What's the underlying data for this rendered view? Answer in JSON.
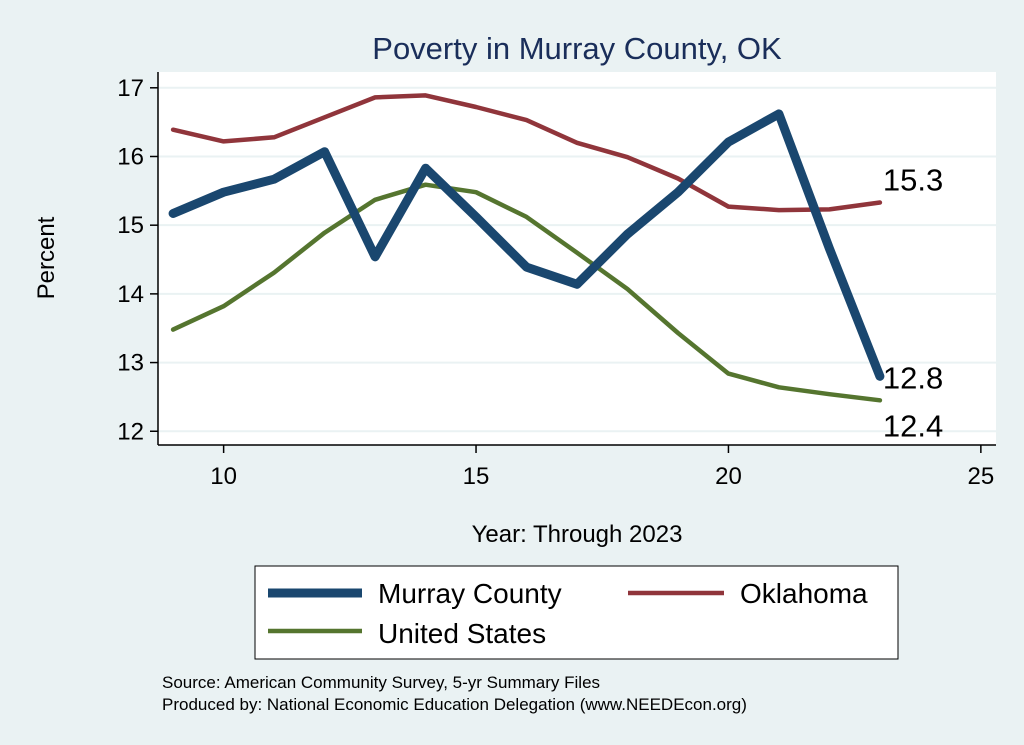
{
  "chart_data": {
    "type": "line",
    "title": "Poverty in Murray County, OK",
    "xlabel": "Year: Through 2023",
    "ylabel": "Percent",
    "xlim": [
      8.7,
      25.3
    ],
    "ylim": [
      11.8,
      17.23
    ],
    "xticks": [
      10,
      15,
      20,
      25
    ],
    "yticks": [
      12,
      13,
      14,
      15,
      16,
      17
    ],
    "grid": true,
    "legend_position": "bottom",
    "x": [
      9,
      10,
      11,
      12,
      13,
      14,
      15,
      16,
      17,
      18,
      19,
      20,
      21,
      22,
      23
    ],
    "series": [
      {
        "name": "Murray County",
        "color": "#1a476f",
        "values": [
          15.17,
          15.48,
          15.67,
          16.07,
          14.54,
          15.83,
          15.12,
          14.39,
          14.14,
          14.87,
          15.48,
          16.21,
          16.62,
          14.66,
          12.8
        ],
        "end_label": "12.8"
      },
      {
        "name": "Oklahoma",
        "color": "#90353b",
        "values": [
          16.39,
          16.22,
          16.28,
          16.57,
          16.86,
          16.89,
          16.72,
          16.53,
          16.2,
          15.99,
          15.68,
          15.27,
          15.22,
          15.23,
          15.33
        ],
        "end_label": "15.3"
      },
      {
        "name": "United States",
        "color": "#55752f",
        "values": [
          13.48,
          13.82,
          14.31,
          14.89,
          15.37,
          15.59,
          15.48,
          15.12,
          14.6,
          14.07,
          13.43,
          12.84,
          12.64,
          12.54,
          12.45
        ],
        "end_label": "12.4"
      }
    ]
  },
  "footnotes": {
    "source": "Source: American Community Survey, 5-yr Summary Files",
    "produced": "Produced by: National Economic Education Delegation (www.NEEDEcon.org)"
  }
}
